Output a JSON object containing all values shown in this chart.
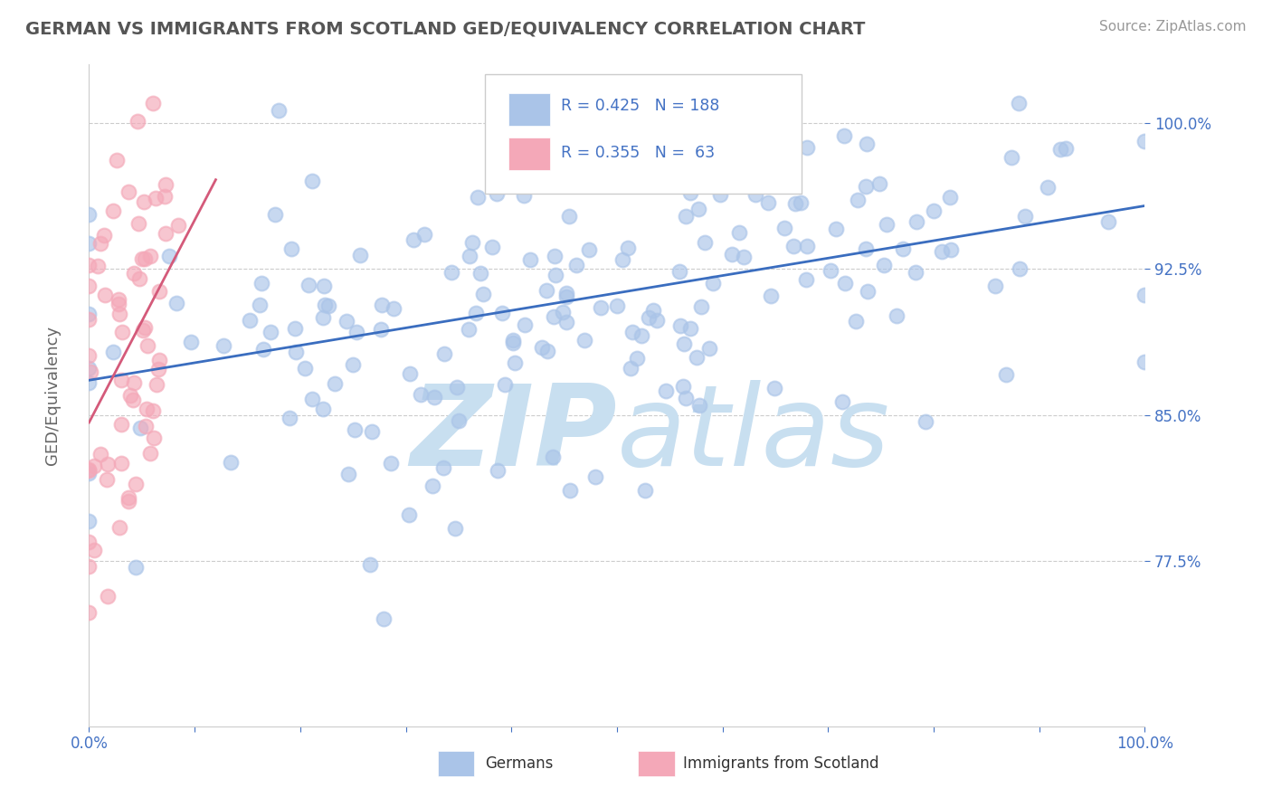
{
  "title": "GERMAN VS IMMIGRANTS FROM SCOTLAND GED/EQUIVALENCY CORRELATION CHART",
  "source": "Source: ZipAtlas.com",
  "ylabel": "GED/Equivalency",
  "ytick_labels": [
    "100.0%",
    "92.5%",
    "85.0%",
    "77.5%"
  ],
  "ytick_values": [
    1.0,
    0.925,
    0.85,
    0.775
  ],
  "blue_dot_color": "#aac4e8",
  "pink_dot_color": "#f4a8b8",
  "blue_line_color": "#3a6dbf",
  "pink_line_color": "#d45a7a",
  "blue_r": 0.425,
  "pink_r": 0.355,
  "blue_n": 188,
  "pink_n": 63,
  "title_color": "#555555",
  "source_color": "#999999",
  "axis_label_color": "#666666",
  "tick_color": "#4472c4",
  "legend_r_color": "#4472c4",
  "legend_label_color": "#333333",
  "grid_color": "#cccccc",
  "background_color": "#ffffff",
  "watermark_zip": "ZIP",
  "watermark_atlas": "atlas",
  "watermark_color_zip": "#c8dff0",
  "watermark_color_atlas": "#c8dff0",
  "xlim": [
    0.0,
    1.0
  ],
  "ylim": [
    0.69,
    1.03
  ]
}
